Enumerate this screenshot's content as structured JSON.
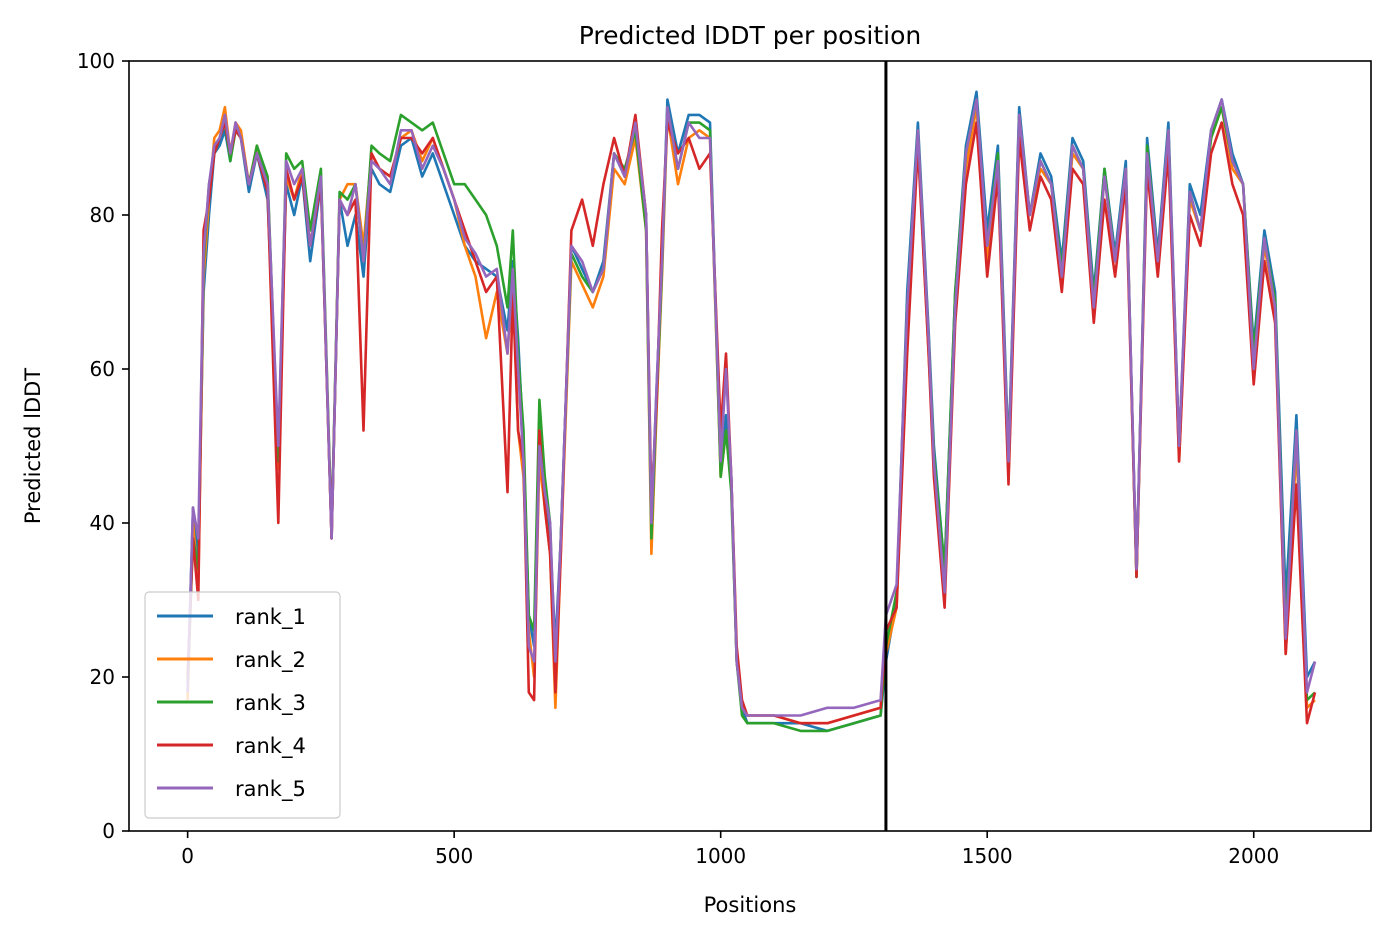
{
  "chart_data": {
    "type": "line",
    "title": "Predicted lDDT per position",
    "xlabel": "Positions",
    "ylabel": "Predicted lDDT",
    "xlim": [
      -110,
      2220
    ],
    "ylim": [
      0,
      100
    ],
    "xticks": [
      0,
      500,
      1000,
      1500,
      2000
    ],
    "yticks": [
      0,
      20,
      40,
      60,
      80,
      100
    ],
    "grid": false,
    "legend_position": "lower-left",
    "chain_break_line": {
      "x": 1310,
      "color": "#000000"
    },
    "colors": [
      "#1f77b4",
      "#ff7f0e",
      "#2ca02c",
      "#d62728",
      "#9467bd"
    ],
    "x": [
      0,
      10,
      20,
      30,
      40,
      50,
      60,
      70,
      80,
      90,
      100,
      115,
      130,
      150,
      170,
      185,
      200,
      215,
      230,
      250,
      270,
      285,
      300,
      315,
      330,
      345,
      360,
      380,
      400,
      420,
      440,
      460,
      480,
      500,
      520,
      540,
      560,
      580,
      600,
      610,
      620,
      630,
      640,
      650,
      660,
      670,
      680,
      690,
      700,
      720,
      740,
      760,
      780,
      800,
      820,
      840,
      860,
      870,
      880,
      890,
      900,
      920,
      940,
      960,
      980,
      1000,
      1010,
      1020,
      1030,
      1040,
      1050,
      1100,
      1150,
      1200,
      1250,
      1300,
      1310,
      1330,
      1350,
      1370,
      1390,
      1400,
      1420,
      1440,
      1460,
      1480,
      1500,
      1520,
      1540,
      1560,
      1580,
      1600,
      1620,
      1640,
      1660,
      1680,
      1700,
      1720,
      1740,
      1760,
      1780,
      1800,
      1820,
      1840,
      1860,
      1880,
      1900,
      1920,
      1940,
      1960,
      1980,
      2000,
      2020,
      2040,
      2060,
      2080,
      2100,
      2115
    ],
    "series": [
      {
        "name": "rank_1",
        "values": [
          18,
          42,
          35,
          70,
          80,
          88,
          89,
          91,
          87,
          92,
          90,
          83,
          88,
          82,
          48,
          84,
          80,
          85,
          74,
          84,
          38,
          82,
          76,
          80,
          72,
          86,
          84,
          83,
          89,
          90,
          85,
          88,
          84,
          80,
          76,
          74,
          73,
          72,
          65,
          74,
          64,
          50,
          28,
          24,
          50,
          44,
          38,
          24,
          38,
          76,
          73,
          70,
          74,
          88,
          85,
          92,
          80,
          40,
          58,
          74,
          95,
          88,
          93,
          93,
          92,
          47,
          54,
          46,
          22,
          16,
          14,
          14,
          14,
          13,
          14,
          15,
          22,
          30,
          70,
          92,
          65,
          50,
          34,
          70,
          89,
          96,
          78,
          89,
          49,
          94,
          80,
          88,
          85,
          74,
          90,
          87,
          70,
          86,
          75,
          87,
          33,
          90,
          75,
          92,
          50,
          84,
          80,
          91,
          95,
          88,
          84,
          63,
          78,
          70,
          30,
          54,
          20,
          22
        ],
        "color": "#1f77b4"
      },
      {
        "name": "rank_2",
        "values": [
          17,
          40,
          32,
          72,
          82,
          90,
          91,
          94,
          88,
          92,
          91,
          84,
          89,
          84,
          47,
          85,
          82,
          86,
          76,
          85,
          38,
          82,
          84,
          84,
          76,
          88,
          86,
          85,
          90,
          91,
          87,
          90,
          86,
          82,
          76,
          72,
          64,
          70,
          62,
          72,
          52,
          46,
          26,
          20,
          48,
          42,
          36,
          16,
          36,
          74,
          71,
          68,
          72,
          86,
          84,
          90,
          78,
          36,
          55,
          72,
          93,
          84,
          90,
          91,
          90,
          46,
          52,
          45,
          22,
          16,
          15,
          15,
          14,
          14,
          15,
          16,
          23,
          29,
          66,
          90,
          62,
          48,
          33,
          68,
          86,
          94,
          74,
          86,
          46,
          92,
          80,
          86,
          84,
          72,
          88,
          86,
          68,
          85,
          74,
          86,
          33,
          88,
          74,
          90,
          48,
          82,
          78,
          90,
          94,
          86,
          84,
          60,
          76,
          68,
          23,
          50,
          16,
          17
        ],
        "color": "#ff7f0e"
      },
      {
        "name": "rank_3",
        "values": [
          19,
          38,
          34,
          74,
          84,
          88,
          90,
          92,
          87,
          91,
          90,
          84,
          89,
          85,
          48,
          88,
          86,
          87,
          78,
          86,
          39,
          83,
          82,
          84,
          74,
          89,
          88,
          87,
          93,
          92,
          91,
          92,
          88,
          84,
          84,
          82,
          80,
          76,
          68,
          78,
          62,
          52,
          28,
          26,
          56,
          46,
          40,
          20,
          38,
          75,
          72,
          70,
          73,
          88,
          86,
          91,
          78,
          38,
          56,
          73,
          94,
          86,
          92,
          92,
          91,
          46,
          52,
          44,
          22,
          15,
          14,
          14,
          13,
          13,
          14,
          15,
          24,
          31,
          68,
          91,
          64,
          49,
          34,
          70,
          88,
          95,
          76,
          88,
          48,
          93,
          80,
          87,
          84,
          73,
          89,
          86,
          69,
          86,
          74,
          86,
          33,
          89,
          74,
          91,
          49,
          83,
          78,
          90,
          94,
          87,
          84,
          62,
          77,
          69,
          26,
          52,
          17,
          18
        ],
        "color": "#2ca02c"
      },
      {
        "name": "rank_4",
        "values": [
          20,
          38,
          30,
          78,
          82,
          88,
          90,
          92,
          88,
          91,
          90,
          84,
          88,
          83,
          40,
          86,
          82,
          85,
          76,
          84,
          38,
          82,
          80,
          82,
          52,
          88,
          86,
          85,
          90,
          90,
          88,
          90,
          86,
          82,
          78,
          74,
          70,
          72,
          44,
          70,
          52,
          48,
          18,
          17,
          52,
          42,
          36,
          18,
          36,
          78,
          82,
          76,
          84,
          90,
          85,
          93,
          80,
          42,
          56,
          78,
          92,
          88,
          90,
          86,
          88,
          52,
          62,
          46,
          24,
          17,
          15,
          15,
          14,
          14,
          15,
          16,
          26,
          29,
          62,
          89,
          62,
          46,
          29,
          66,
          84,
          92,
          72,
          85,
          45,
          90,
          78,
          85,
          82,
          70,
          86,
          84,
          66,
          82,
          72,
          84,
          33,
          86,
          72,
          88,
          48,
          80,
          76,
          88,
          92,
          84,
          80,
          58,
          74,
          66,
          23,
          45,
          14,
          18
        ],
        "color": "#d62728"
      },
      {
        "name": "rank_5",
        "values": [
          18,
          42,
          38,
          75,
          84,
          89,
          90,
          93,
          88,
          92,
          90,
          84,
          88,
          84,
          50,
          87,
          84,
          86,
          76,
          85,
          38,
          82,
          80,
          84,
          74,
          87,
          86,
          84,
          91,
          91,
          86,
          89,
          86,
          82,
          77,
          75,
          72,
          73,
          62,
          73,
          60,
          48,
          24,
          22,
          50,
          44,
          40,
          22,
          38,
          76,
          74,
          70,
          73,
          88,
          85,
          92,
          80,
          40,
          58,
          74,
          94,
          86,
          92,
          90,
          90,
          48,
          60,
          46,
          22,
          16,
          15,
          15,
          15,
          16,
          16,
          17,
          28,
          32,
          68,
          91,
          64,
          48,
          31,
          68,
          88,
          95,
          76,
          87,
          48,
          93,
          80,
          87,
          84,
          72,
          89,
          86,
          68,
          85,
          74,
          86,
          34,
          88,
          74,
          91,
          50,
          83,
          78,
          91,
          95,
          87,
          84,
          60,
          77,
          68,
          25,
          52,
          18,
          22
        ],
        "color": "#9467bd"
      }
    ]
  }
}
